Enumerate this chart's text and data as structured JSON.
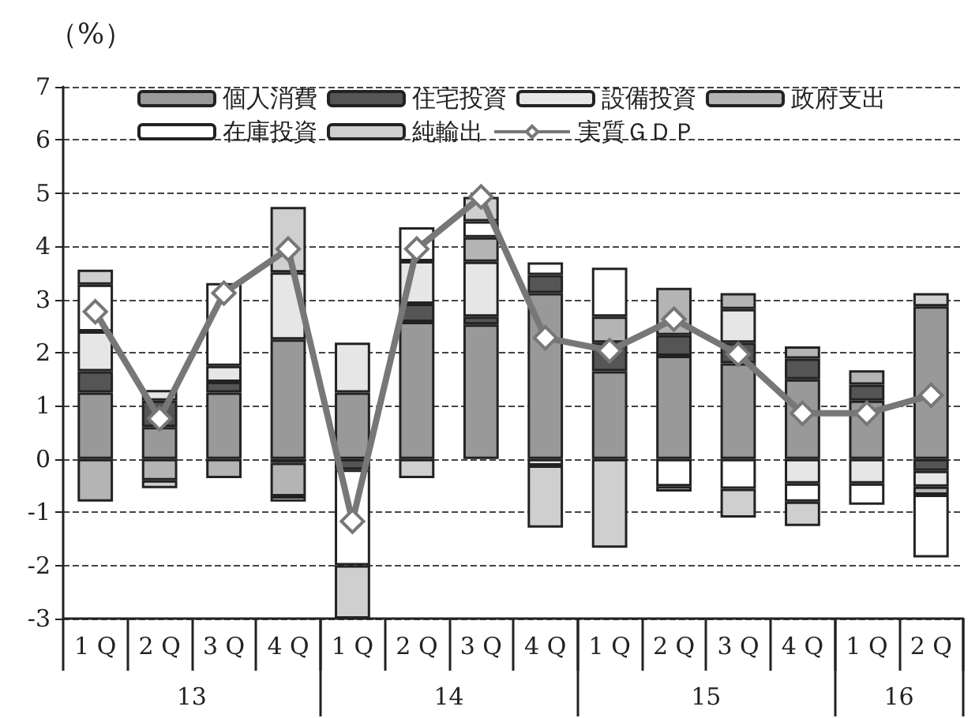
{
  "chart_data": {
    "type": "bar",
    "stacked": true,
    "ylabel": "（%）",
    "categories": [
      "1 Q",
      "2 Q",
      "3 Q",
      "4 Q",
      "1 Q",
      "2 Q",
      "3 Q",
      "4 Q",
      "1 Q",
      "2 Q",
      "3 Q",
      "4 Q",
      "1 Q",
      "2 Q"
    ],
    "annotations": [
      "13",
      "14",
      "15",
      "16"
    ],
    "series": [
      {
        "name": "個人消費",
        "color": "#999999",
        "values": [
          1.25,
          0.6,
          1.25,
          2.25,
          1.25,
          2.58,
          2.53,
          3.12,
          1.65,
          1.94,
          1.8,
          1.5,
          1.1,
          2.87
        ]
      },
      {
        "name": "住宅投資",
        "color": "#555555",
        "values": [
          0.4,
          0.5,
          0.2,
          -0.07,
          -0.2,
          0.34,
          0.15,
          0.34,
          0.54,
          0.39,
          0.39,
          0.39,
          0.3,
          -0.22
        ]
      },
      {
        "name": "設備投資",
        "color": "#e6e6e6",
        "values": [
          0.75,
          0.2,
          0.3,
          1.26,
          0.94,
          0.8,
          1.03,
          -0.12,
          null,
          null,
          0.63,
          -0.46,
          -0.46,
          -0.3
        ]
      },
      {
        "name": "政府支出",
        "color": "#b4b4b4",
        "values": [
          -0.8,
          -0.4,
          -0.36,
          -0.63,
          null,
          null,
          0.46,
          null,
          0.49,
          0.89,
          0.3,
          0.23,
          0.27,
          -0.15
        ]
      },
      {
        "name": "在庫投資",
        "color": "#ffffff",
        "values": [
          0.88,
          null,
          1.56,
          -0.1,
          -1.8,
          0.64,
          0.3,
          0.24,
          0.92,
          -0.51,
          -0.56,
          -0.34,
          -0.4,
          -1.18
        ]
      },
      {
        "name": "純輸出",
        "color": "#cfcfcf",
        "values": [
          0.28,
          -0.15,
          null,
          1.23,
          -1.0,
          -0.36,
          0.46,
          -1.17,
          -1.67,
          -0.1,
          -0.54,
          -0.46,
          null,
          0.25
        ]
      },
      {
        "name": "実質ＧＤＰ",
        "type": "line",
        "color": "#777777",
        "values": [
          2.77,
          0.76,
          3.12,
          3.95,
          -1.17,
          3.95,
          4.93,
          2.28,
          2.04,
          2.63,
          1.97,
          0.86,
          0.86,
          1.2
        ]
      }
    ],
    "marker": "diamond",
    "ylim": [
      -3,
      7
    ],
    "yticks": [
      -3,
      -2,
      -1,
      0,
      1,
      2,
      3,
      4,
      5,
      6,
      7
    ],
    "grid": "y",
    "legend": "top left"
  }
}
